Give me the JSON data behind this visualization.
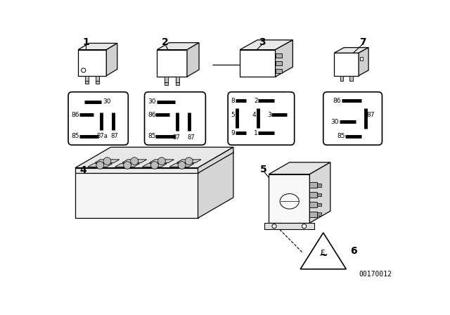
{
  "bg_color": "#ffffff",
  "part_number": "00170012",
  "line_color": "#000000",
  "text_color": "#000000"
}
